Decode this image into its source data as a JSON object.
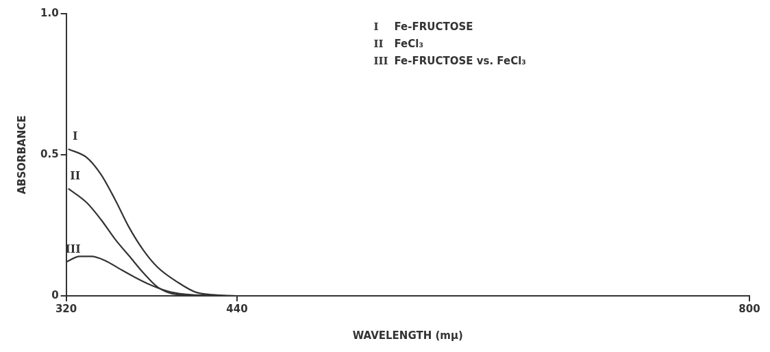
{
  "chart_data": {
    "type": "line",
    "xlabel": "WAVELENGTH (mμ)",
    "ylabel": "ABSORBANCE",
    "xlim": [
      320,
      800
    ],
    "xticks": [
      320,
      440,
      800
    ],
    "ylim": [
      0,
      1
    ],
    "yticks": [
      0,
      0.5,
      {
        "value": 1,
        "label": "1.0"
      }
    ],
    "grid": false,
    "marker": "none",
    "line_style": "solid",
    "annotations": [
      "Fe-FRUCTOSE",
      "FeCl₃",
      "Fe-FRUCTOSE vs. FeCl₃"
    ],
    "series": [
      {
        "name": "I",
        "color": "#333333",
        "x": [
          321.5,
          334.5,
          344.5,
          354.5,
          364.5,
          374.5,
          384.5,
          397.8,
          411,
          426,
          440,
          800
        ],
        "values": [
          0.52,
          0.49,
          0.43,
          0.34,
          0.24,
          0.16,
          0.1,
          0.05,
          0.013,
          0.003,
          0,
          0
        ]
      },
      {
        "name": "II",
        "color": "#333333",
        "x": [
          321.5,
          334.5,
          344.5,
          354.5,
          364.5,
          374.5,
          384.5,
          397.8,
          440,
          800
        ],
        "values": [
          0.38,
          0.33,
          0.27,
          0.2,
          0.14,
          0.08,
          0.03,
          0.005,
          0,
          0
        ]
      },
      {
        "name": "III",
        "color": "#333333",
        "x": [
          320,
          329.5,
          337.8,
          347.8,
          357.8,
          367.8,
          377.8,
          391,
          404.5,
          425,
          440,
          800
        ],
        "values": [
          0.12,
          0.14,
          0.14,
          0.124,
          0.095,
          0.067,
          0.042,
          0.017,
          0.005,
          0.001,
          0,
          0
        ]
      }
    ]
  }
}
